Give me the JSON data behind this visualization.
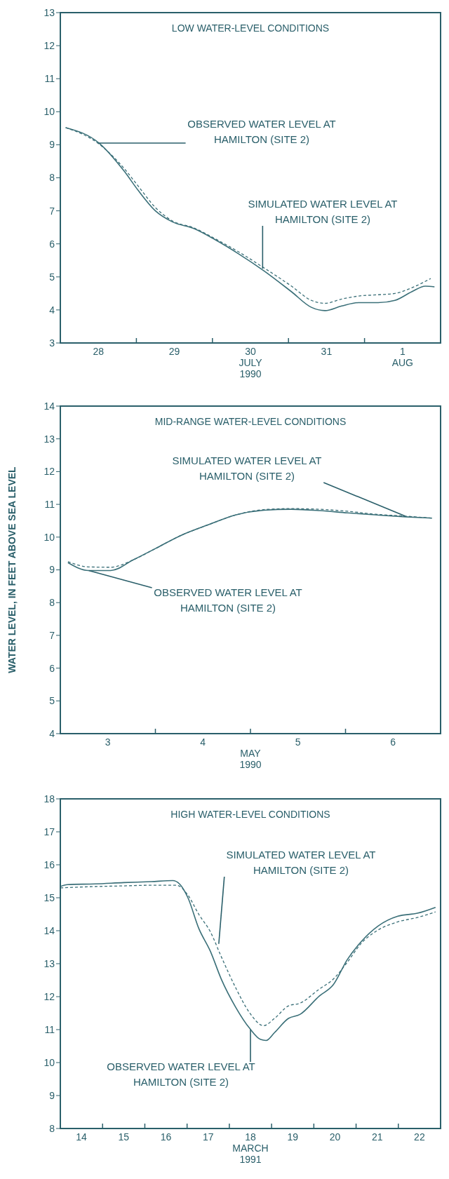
{
  "chart_data": [
    {
      "type": "line",
      "title": "LOW WATER-LEVEL CONDITIONS",
      "xlabel": "JULY 1990",
      "marker": "none",
      "xlim": [
        28,
        33
      ],
      "ylim": [
        3,
        13
      ],
      "yticks": [
        3,
        4,
        5,
        6,
        7,
        8,
        9,
        10,
        11,
        12,
        13
      ],
      "xticks": [
        {
          "value": 28.5,
          "label": "28"
        },
        {
          "value": 29,
          "label": null
        },
        {
          "value": 29.5,
          "label": "29"
        },
        {
          "value": 30,
          "label": null
        },
        {
          "value": 30.5,
          "label": "30"
        },
        {
          "value": 31,
          "label": null
        },
        {
          "value": 31.5,
          "label": "31"
        },
        {
          "value": 32,
          "label": null
        },
        {
          "value": 32.5,
          "label": "1 AUG"
        }
      ],
      "series": [
        {
          "color": "#3a6f78",
          "line_style": "solid",
          "x": [
            28.07,
            28.51,
            28.84,
            29.03,
            29.25,
            29.47,
            29.76,
            30.04,
            30.35,
            30.68,
            31.04,
            31.3,
            31.48,
            31.7,
            31.92,
            32.18,
            32.4,
            32.62,
            32.8,
            32.92
          ],
          "values": [
            9.52,
            9.05,
            8.2,
            7.6,
            7.0,
            6.67,
            6.46,
            6.12,
            5.69,
            5.18,
            4.55,
            4.08,
            3.98,
            4.12,
            4.22,
            4.22,
            4.29,
            4.55,
            4.72,
            4.7
          ]
        },
        {
          "color": "#3a6f78",
          "line_style": "dashed",
          "x": [
            28.07,
            28.51,
            28.84,
            29.03,
            29.25,
            29.47,
            29.76,
            30.04,
            30.35,
            30.68,
            31.04,
            31.3,
            31.48,
            31.7,
            31.92,
            32.18,
            32.4,
            32.62,
            32.87
          ],
          "values": [
            9.52,
            9.02,
            8.28,
            7.73,
            7.1,
            6.7,
            6.48,
            6.15,
            5.75,
            5.27,
            4.72,
            4.29,
            4.2,
            4.33,
            4.42,
            4.46,
            4.5,
            4.67,
            4.95
          ]
        }
      ],
      "annotations": [
        {
          "text": "OBSERVED WATER LEVEL AT HAMILTON (SITE 2)",
          "x": 28.5,
          "y": 9.05
        },
        {
          "text": "SIMULATED WATER LEVEL AT HAMILTON (SITE 2)",
          "x": 30.66,
          "y": 5.25
        }
      ]
    },
    {
      "type": "line",
      "title": "MID-RANGE WATER-LEVEL CONDITIONS",
      "xlabel": "MAY 1990",
      "ylabel": "WATER LEVEL, IN FEET ABOVE SEA LEVEL",
      "marker": "none",
      "xlim": [
        3,
        7
      ],
      "ylim": [
        4,
        14
      ],
      "yticks": [
        4,
        5,
        6,
        7,
        8,
        9,
        10,
        11,
        12,
        13,
        14
      ],
      "xticks": [
        {
          "value": 3.5,
          "label": "3"
        },
        {
          "value": 4,
          "label": null
        },
        {
          "value": 4.5,
          "label": "4"
        },
        {
          "value": 5,
          "label": null
        },
        {
          "value": 5.5,
          "label": "5"
        },
        {
          "value": 6,
          "label": null
        },
        {
          "value": 6.5,
          "label": "6"
        }
      ],
      "series": [
        {
          "color": "#3a6f78",
          "line_style": "solid",
          "x": [
            3.08,
            3.3,
            3.53,
            3.77,
            4.0,
            4.26,
            4.56,
            4.85,
            5.14,
            5.43,
            5.73,
            6.02,
            6.31,
            6.63,
            6.91
          ],
          "values": [
            9.22,
            8.98,
            8.98,
            9.31,
            9.65,
            10.04,
            10.38,
            10.68,
            10.82,
            10.85,
            10.81,
            10.74,
            10.68,
            10.62,
            10.58
          ]
        },
        {
          "color": "#3a6f78",
          "line_style": "dashed",
          "x": [
            3.08,
            3.3,
            3.53,
            3.77,
            4.0,
            4.26,
            4.56,
            4.85,
            5.14,
            5.43,
            5.73,
            6.02,
            6.31,
            6.63,
            6.91
          ],
          "values": [
            9.25,
            9.09,
            9.08,
            9.31,
            9.65,
            10.04,
            10.38,
            10.68,
            10.84,
            10.87,
            10.85,
            10.79,
            10.7,
            10.64,
            10.58
          ]
        }
      ],
      "annotations": [
        {
          "text": "SIMULATED WATER LEVEL AT HAMILTON (SITE 2)",
          "x": 6.63,
          "y": 10.64
        },
        {
          "text": "OBSERVED WATER LEVEL AT HAMILTON (SITE 2)",
          "x": 3.3,
          "y": 8.98
        }
      ]
    },
    {
      "type": "line",
      "title": "HIGH WATER-LEVEL CONDITIONS",
      "xlabel": "MARCH 1991",
      "marker": "none",
      "xlim": [
        14,
        23
      ],
      "ylim": [
        8,
        18
      ],
      "yticks": [
        8,
        9,
        10,
        11,
        12,
        13,
        14,
        15,
        16,
        17,
        18
      ],
      "xticks": [
        {
          "value": 14.5,
          "label": "14"
        },
        {
          "value": 15,
          "label": null
        },
        {
          "value": 15.5,
          "label": "15"
        },
        {
          "value": 16,
          "label": null
        },
        {
          "value": 16.5,
          "label": "16"
        },
        {
          "value": 17,
          "label": null
        },
        {
          "value": 17.5,
          "label": "17"
        },
        {
          "value": 18,
          "label": null
        },
        {
          "value": 18.5,
          "label": "18"
        },
        {
          "value": 19,
          "label": null
        },
        {
          "value": 19.5,
          "label": "19"
        },
        {
          "value": 20,
          "label": null
        },
        {
          "value": 20.5,
          "label": "20"
        },
        {
          "value": 21,
          "label": null
        },
        {
          "value": 21.5,
          "label": "21"
        },
        {
          "value": 22,
          "label": null
        },
        {
          "value": 22.5,
          "label": "22"
        }
      ],
      "series": [
        {
          "color": "#3a6f78",
          "line_style": "solid",
          "x": [
            14.0,
            14.17,
            14.83,
            15.5,
            16.15,
            16.66,
            16.82,
            17.02,
            17.28,
            17.55,
            17.81,
            18.15,
            18.48,
            18.74,
            18.87,
            19.07,
            19.4,
            19.67,
            20.13,
            20.46,
            20.79,
            21.13,
            21.52,
            21.99,
            22.45,
            22.88
          ],
          "values": [
            15.34,
            15.4,
            15.42,
            15.46,
            15.49,
            15.52,
            15.42,
            15.0,
            14.06,
            13.38,
            12.53,
            11.68,
            11.04,
            10.7,
            10.67,
            10.91,
            11.34,
            11.46,
            12.02,
            12.36,
            13.12,
            13.68,
            14.14,
            14.44,
            14.53,
            14.71
          ]
        },
        {
          "color": "#3a6f78",
          "line_style": "dashed",
          "x": [
            14.0,
            14.83,
            15.5,
            16.15,
            16.75,
            17.02,
            17.28,
            17.55,
            17.81,
            18.15,
            18.48,
            18.81,
            19.07,
            19.4,
            19.67,
            20.13,
            20.46,
            20.79,
            21.13,
            21.52,
            21.99,
            22.45,
            22.88
          ],
          "values": [
            15.3,
            15.34,
            15.36,
            15.38,
            15.38,
            15.08,
            14.49,
            13.97,
            13.21,
            12.27,
            11.51,
            11.12,
            11.34,
            11.72,
            11.8,
            12.23,
            12.53,
            13.04,
            13.63,
            14.02,
            14.27,
            14.4,
            14.57
          ]
        }
      ],
      "annotations": [
        {
          "text": "SIMULATED WATER LEVEL AT HAMILTON (SITE 2)",
          "x": 17.75,
          "y": 13.6
        },
        {
          "text": "OBSERVED WATER LEVEL AT HAMILTON (SITE 2)",
          "x": 18.5,
          "y": 11.0
        }
      ]
    }
  ]
}
